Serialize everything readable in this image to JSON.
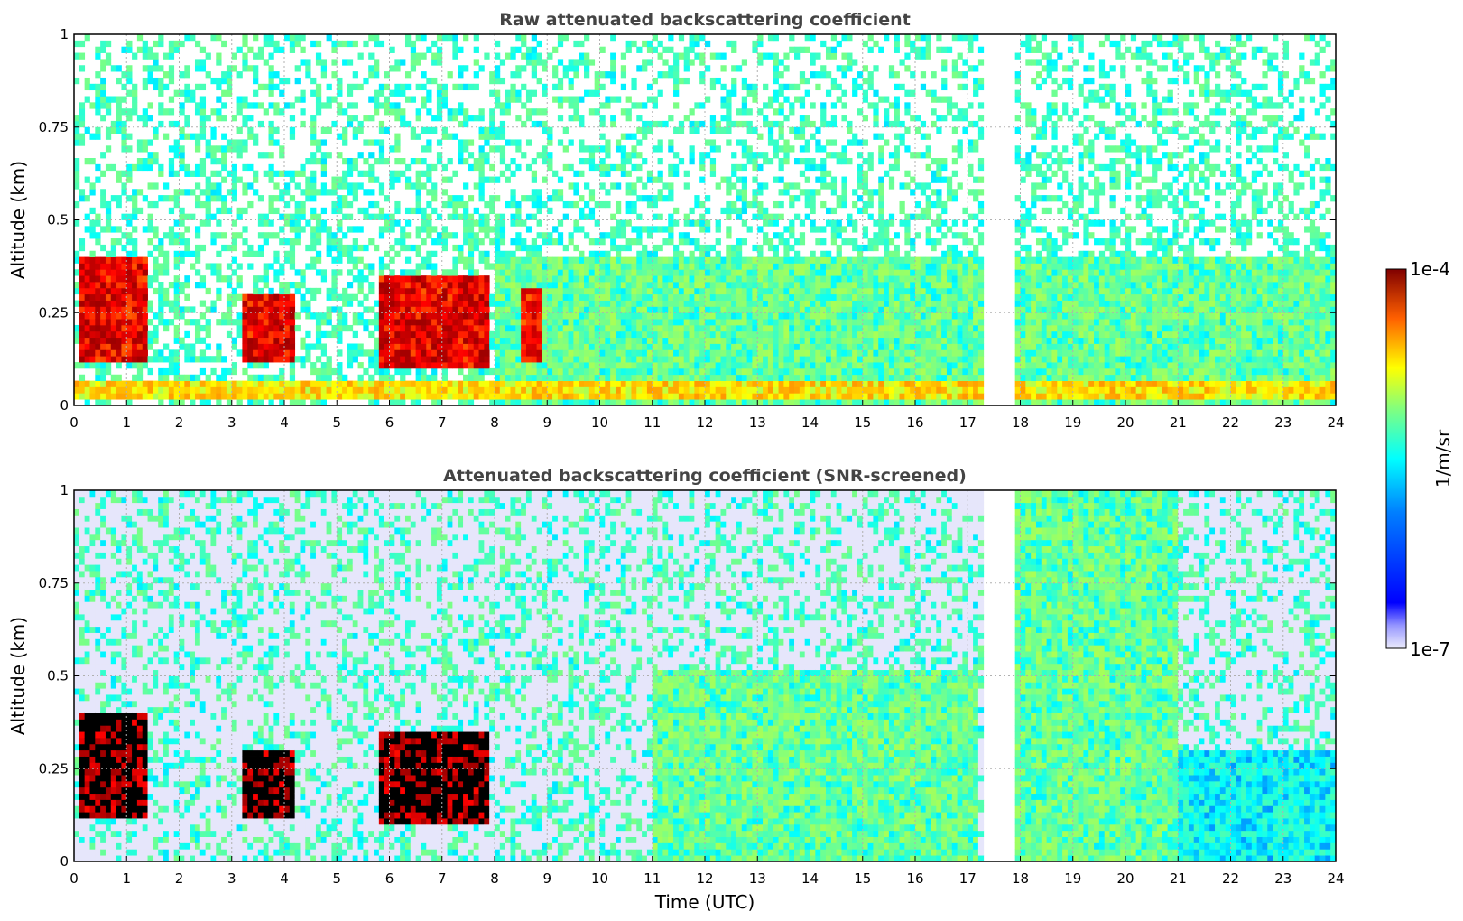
{
  "chart_data": [
    {
      "type": "heatmap",
      "title": "Raw attenuated backscattering coefficient",
      "xlabel": "",
      "ylabel": "Altitude (km)",
      "xlim": [
        0,
        24
      ],
      "ylim": [
        0,
        1
      ],
      "xticks": [
        0,
        1,
        2,
        3,
        4,
        5,
        6,
        7,
        8,
        9,
        10,
        11,
        12,
        13,
        14,
        15,
        16,
        17,
        18,
        19,
        20,
        21,
        22,
        23,
        24
      ],
      "yticks": [
        0,
        0.25,
        0.5,
        0.75,
        1
      ],
      "ytick_labels": [
        "0",
        "0.25",
        "0.5",
        "0.75",
        "1"
      ],
      "grid": true,
      "colormap": "jet",
      "color_scale": "log",
      "features": [
        {
          "kind": "aerosol_layer",
          "x": [
            0.1,
            1.4
          ],
          "y": [
            0.12,
            0.4
          ],
          "value": 5e-05
        },
        {
          "kind": "aerosol_layer",
          "x": [
            3.2,
            4.2
          ],
          "y": [
            0.11,
            0.3
          ],
          "value": 5e-05
        },
        {
          "kind": "aerosol_layer",
          "x": [
            5.8,
            7.9
          ],
          "y": [
            0.1,
            0.35
          ],
          "value": 5e-05
        },
        {
          "kind": "aerosol_layer",
          "x": [
            8.5,
            8.9
          ],
          "y": [
            0.12,
            0.32
          ],
          "value": 4e-05
        },
        {
          "kind": "boundary_layer",
          "x": [
            8.0,
            24
          ],
          "y": [
            0.0,
            0.4
          ],
          "value": 2e-06
        },
        {
          "kind": "near_surface_layer",
          "x": [
            0,
            24
          ],
          "y": [
            0.02,
            0.07
          ],
          "value": 8e-06
        },
        {
          "kind": "data_gap",
          "x": [
            17.3,
            17.9
          ],
          "y": [
            0,
            1
          ]
        }
      ]
    },
    {
      "type": "heatmap",
      "title": "Attenuated backscattering coefficient (SNR-screened)",
      "xlabel": "Time (UTC)",
      "ylabel": "Altitude (km)",
      "xlim": [
        0,
        24
      ],
      "ylim": [
        0,
        1
      ],
      "xticks": [
        0,
        1,
        2,
        3,
        4,
        5,
        6,
        7,
        8,
        9,
        10,
        11,
        12,
        13,
        14,
        15,
        16,
        17,
        18,
        19,
        20,
        21,
        22,
        23,
        24
      ],
      "yticks": [
        0,
        0.25,
        0.5,
        0.75,
        1
      ],
      "ytick_labels": [
        "0",
        "0.25",
        "0.5",
        "0.75",
        "1"
      ],
      "grid": true,
      "colormap": "jet",
      "color_scale": "log",
      "features": [
        {
          "kind": "aerosol_layer",
          "x": [
            0.1,
            1.4
          ],
          "y": [
            0.12,
            0.4
          ],
          "value": 9e-05
        },
        {
          "kind": "aerosol_layer",
          "x": [
            3.2,
            4.2
          ],
          "y": [
            0.11,
            0.3
          ],
          "value": 9e-05
        },
        {
          "kind": "aerosol_layer",
          "x": [
            5.8,
            7.9
          ],
          "y": [
            0.1,
            0.35
          ],
          "value": 9e-05
        },
        {
          "kind": "boundary_layer",
          "x": [
            11.0,
            17.2
          ],
          "y": [
            0.0,
            0.52
          ],
          "value": 2e-06
        },
        {
          "kind": "boundary_layer",
          "x": [
            17.8,
            21.0
          ],
          "y": [
            0.0,
            1.0
          ],
          "value": 2e-06
        },
        {
          "kind": "boundary_layer",
          "x": [
            21.0,
            24
          ],
          "y": [
            0.0,
            0.3
          ],
          "value": 1e-06
        },
        {
          "kind": "data_gap",
          "x": [
            17.3,
            17.9
          ],
          "y": [
            0,
            1
          ]
        }
      ]
    }
  ],
  "colorbar": {
    "label": "1/m/sr",
    "max_label": "1e-4",
    "min_label": "1e-7",
    "vmin": 1e-07,
    "vmax": 0.0001,
    "scale": "log",
    "colormap": "jet"
  }
}
